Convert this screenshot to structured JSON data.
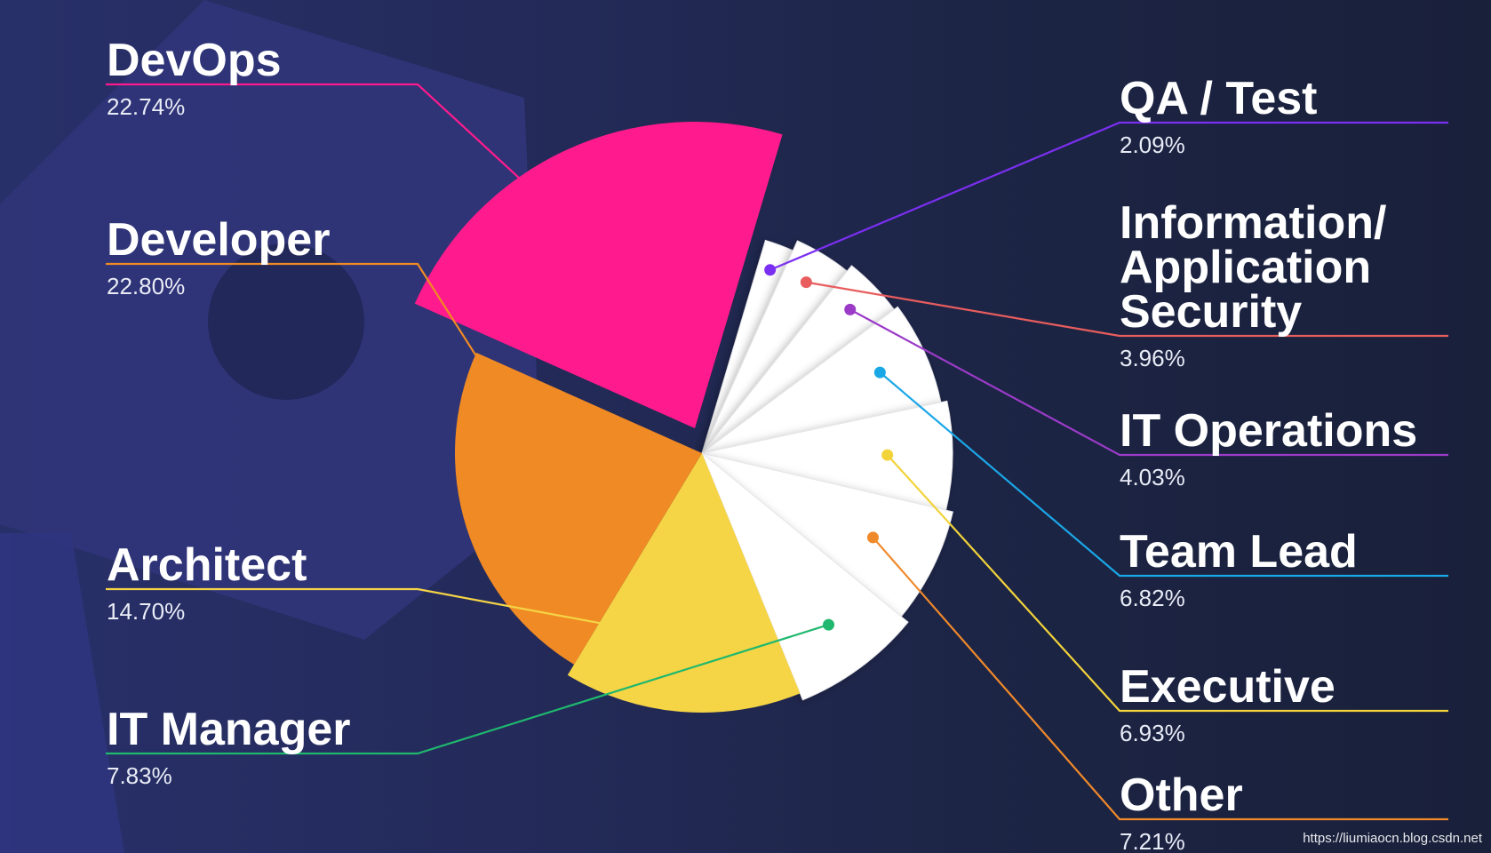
{
  "chart_data": {
    "type": "pie",
    "title": "",
    "slices": [
      {
        "label": "DevOps",
        "percent_text": "22.74%",
        "value": 22.74,
        "color": "#ff1b8d"
      },
      {
        "label": "QA / Test",
        "percent_text": "2.09%",
        "value": 2.09,
        "color": "#ffffff",
        "line_color": "#7b2ff2"
      },
      {
        "label": "Information/ Application Security",
        "label_lines": [
          "Information/",
          "Application",
          "Security"
        ],
        "percent_text": "3.96%",
        "value": 3.96,
        "color": "#ffffff",
        "line_color": "#e85d5d"
      },
      {
        "label": "IT Operations",
        "percent_text": "4.03%",
        "value": 4.03,
        "color": "#ffffff",
        "line_color": "#9b3bc8"
      },
      {
        "label": "Team Lead",
        "percent_text": "6.82%",
        "value": 6.82,
        "color": "#ffffff",
        "line_color": "#1aa7e6"
      },
      {
        "label": "Executive",
        "percent_text": "6.93%",
        "value": 6.93,
        "color": "#ffffff",
        "line_color": "#f2d33a"
      },
      {
        "label": "Other",
        "percent_text": "7.21%",
        "value": 7.21,
        "color": "#ffffff",
        "line_color": "#f0892a"
      },
      {
        "label": "IT Manager",
        "percent_text": "7.83%",
        "value": 7.83,
        "color": "#ffffff",
        "line_color": "#1fb86e"
      },
      {
        "label": "Architect",
        "percent_text": "14.70%",
        "value": 14.7,
        "color": "#f5d446"
      },
      {
        "label": "Developer",
        "percent_text": "22.80%",
        "value": 22.8,
        "color": "#f08a24"
      }
    ]
  },
  "watermark": "https://liumiaocn.blog.csdn.net"
}
